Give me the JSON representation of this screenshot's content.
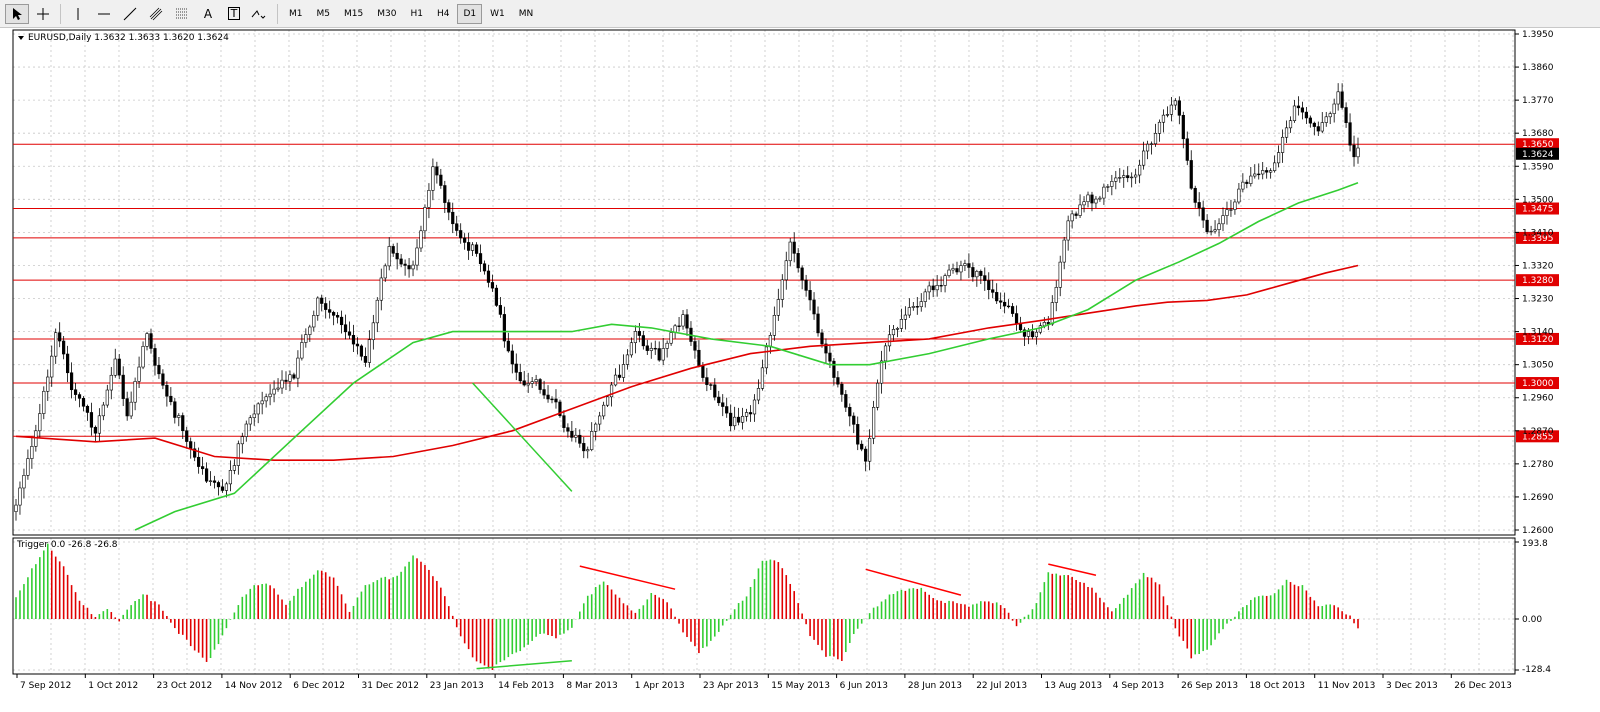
{
  "toolbar": {
    "tools": [
      {
        "name": "cursor-icon"
      },
      {
        "name": "crosshair-icon"
      },
      {
        "name": "vertical-line-icon"
      },
      {
        "name": "horizontal-line-icon"
      },
      {
        "name": "trendline-icon"
      },
      {
        "name": "channel-icon"
      },
      {
        "name": "fibonacci-icon"
      },
      {
        "name": "text-icon",
        "label": "A"
      },
      {
        "name": "text-label-icon",
        "label": "T"
      },
      {
        "name": "arrows-icon"
      }
    ],
    "timeframes": [
      "M1",
      "M5",
      "M15",
      "M30",
      "H1",
      "H4",
      "D1",
      "W1",
      "MN"
    ],
    "active_timeframe": "D1"
  },
  "chart_data": [
    {
      "type": "candlestick",
      "header": "EURUSD,Daily  1.3632 1.3633 1.3620 1.3624",
      "current_price": "1.3624",
      "ylim": [
        1.26,
        1.395
      ],
      "y_ticks": [
        "1.3950",
        "1.3860",
        "1.3770",
        "1.3680",
        "1.3590",
        "1.3500",
        "1.3410",
        "1.3320",
        "1.3230",
        "1.3140",
        "1.3050",
        "1.2960",
        "1.2870",
        "1.2780",
        "1.2690",
        "1.2600"
      ],
      "x_labels": [
        "7 Sep 2012",
        "1 Oct 2012",
        "23 Oct 2012",
        "14 Nov 2012",
        "6 Dec 2012",
        "31 Dec 2012",
        "23 Jan 2013",
        "14 Feb 2013",
        "8 Mar 2013",
        "1 Apr 2013",
        "23 Apr 2013",
        "15 May 2013",
        "6 Jun 2013",
        "28 Jun 2013",
        "22 Jul 2013",
        "13 Aug 2013",
        "4 Sep 2013",
        "26 Sep 2013",
        "18 Oct 2013",
        "11 Nov 2013",
        "3 Dec 2013",
        "26 Dec 2013"
      ],
      "horizontal_levels": [
        {
          "value": 1.365,
          "label": "1.3650"
        },
        {
          "value": 1.3475,
          "label": "1.3475"
        },
        {
          "value": 1.3395,
          "label": "1.3395"
        },
        {
          "value": 1.328,
          "label": "1.3280"
        },
        {
          "value": 1.312,
          "label": "1.3120"
        },
        {
          "value": 1.3,
          "label": "1.3000"
        },
        {
          "value": 1.2855,
          "label": "1.2855"
        }
      ],
      "close_path": [
        [
          0,
          1.265
        ],
        [
          4,
          1.283
        ],
        [
          10,
          1.314
        ],
        [
          14,
          1.298
        ],
        [
          20,
          1.288
        ],
        [
          25,
          1.308
        ],
        [
          28,
          1.289
        ],
        [
          33,
          1.313
        ],
        [
          38,
          1.298
        ],
        [
          45,
          1.278
        ],
        [
          52,
          1.272
        ],
        [
          58,
          1.287
        ],
        [
          64,
          1.299
        ],
        [
          70,
          1.303
        ],
        [
          76,
          1.321
        ],
        [
          82,
          1.318
        ],
        [
          88,
          1.304
        ],
        [
          94,
          1.338
        ],
        [
          100,
          1.33
        ],
        [
          105,
          1.357
        ],
        [
          110,
          1.345
        ],
        [
          115,
          1.336
        ],
        [
          120,
          1.324
        ],
        [
          126,
          1.303
        ],
        [
          132,
          1.298
        ],
        [
          138,
          1.29
        ],
        [
          144,
          1.282
        ],
        [
          150,
          1.298
        ],
        [
          156,
          1.315
        ],
        [
          162,
          1.306
        ],
        [
          168,
          1.32
        ],
        [
          174,
          1.3
        ],
        [
          180,
          1.288
        ],
        [
          185,
          1.293
        ],
        [
          190,
          1.312
        ],
        [
          195,
          1.338
        ],
        [
          200,
          1.323
        ],
        [
          205,
          1.304
        ],
        [
          210,
          1.289
        ],
        [
          214,
          1.28
        ],
        [
          218,
          1.308
        ],
        [
          224,
          1.318
        ],
        [
          230,
          1.327
        ],
        [
          236,
          1.33
        ],
        [
          242,
          1.331
        ],
        [
          248,
          1.322
        ],
        [
          254,
          1.312
        ],
        [
          260,
          1.318
        ],
        [
          265,
          1.343
        ],
        [
          270,
          1.349
        ],
        [
          276,
          1.356
        ],
        [
          282,
          1.355
        ],
        [
          287,
          1.37
        ],
        [
          292,
          1.378
        ],
        [
          296,
          1.352
        ],
        [
          300,
          1.34
        ],
        [
          305,
          1.348
        ],
        [
          310,
          1.354
        ],
        [
          316,
          1.358
        ],
        [
          322,
          1.376
        ],
        [
          328,
          1.368
        ],
        [
          333,
          1.38
        ],
        [
          337,
          1.3624
        ]
      ],
      "ma_green": [
        [
          30,
          1.26
        ],
        [
          40,
          1.265
        ],
        [
          55,
          1.27
        ],
        [
          70,
          1.285
        ],
        [
          85,
          1.3
        ],
        [
          100,
          1.311
        ],
        [
          110,
          1.314
        ],
        [
          125,
          1.314
        ],
        [
          140,
          1.314
        ],
        [
          150,
          1.316
        ],
        [
          160,
          1.315
        ],
        [
          175,
          1.312
        ],
        [
          190,
          1.31
        ],
        [
          205,
          1.305
        ],
        [
          215,
          1.305
        ],
        [
          230,
          1.308
        ],
        [
          245,
          1.312
        ],
        [
          258,
          1.315
        ],
        [
          270,
          1.32
        ],
        [
          282,
          1.328
        ],
        [
          293,
          1.333
        ],
        [
          303,
          1.338
        ],
        [
          313,
          1.344
        ],
        [
          323,
          1.349
        ],
        [
          333,
          1.3525
        ],
        [
          338,
          1.3545
        ]
      ],
      "ma_red": [
        [
          0,
          1.2855
        ],
        [
          20,
          1.284
        ],
        [
          35,
          1.285
        ],
        [
          50,
          1.28
        ],
        [
          65,
          1.279
        ],
        [
          80,
          1.279
        ],
        [
          95,
          1.28
        ],
        [
          110,
          1.283
        ],
        [
          125,
          1.287
        ],
        [
          140,
          1.293
        ],
        [
          155,
          1.299
        ],
        [
          170,
          1.304
        ],
        [
          185,
          1.308
        ],
        [
          200,
          1.31
        ],
        [
          215,
          1.311
        ],
        [
          230,
          1.312
        ],
        [
          245,
          1.315
        ],
        [
          258,
          1.317
        ],
        [
          270,
          1.319
        ],
        [
          282,
          1.321
        ],
        [
          290,
          1.322
        ],
        [
          300,
          1.3225
        ],
        [
          310,
          1.324
        ],
        [
          320,
          1.327
        ],
        [
          330,
          1.33
        ],
        [
          338,
          1.332
        ]
      ],
      "annotation_lines": [
        {
          "from": [
            115,
            1.3
          ],
          "to": [
            140,
            1.2705
          ],
          "color": "#32cd32"
        }
      ]
    },
    {
      "type": "histogram",
      "header": "Trigger 0.0 -26.8 -26.8",
      "ylim": [
        -128.4,
        193.8
      ],
      "y_ticks": [
        "193.8",
        "0.00",
        "-128.4"
      ],
      "profile": [
        [
          0,
          50
        ],
        [
          5,
          140
        ],
        [
          8,
          190
        ],
        [
          12,
          130
        ],
        [
          16,
          40
        ],
        [
          20,
          5
        ],
        [
          23,
          30
        ],
        [
          26,
          -5
        ],
        [
          29,
          30
        ],
        [
          32,
          60
        ],
        [
          36,
          40
        ],
        [
          40,
          -20
        ],
        [
          44,
          -70
        ],
        [
          48,
          -110
        ],
        [
          52,
          -40
        ],
        [
          56,
          40
        ],
        [
          60,
          80
        ],
        [
          64,
          90
        ],
        [
          68,
          40
        ],
        [
          72,
          80
        ],
        [
          76,
          120
        ],
        [
          80,
          110
        ],
        [
          84,
          20
        ],
        [
          88,
          80
        ],
        [
          92,
          100
        ],
        [
          96,
          110
        ],
        [
          100,
          160
        ],
        [
          104,
          120
        ],
        [
          108,
          60
        ],
        [
          112,
          -40
        ],
        [
          116,
          -110
        ],
        [
          120,
          -130
        ],
        [
          124,
          -90
        ],
        [
          128,
          -70
        ],
        [
          132,
          -40
        ],
        [
          136,
          -50
        ],
        [
          140,
          -20
        ],
        [
          144,
          60
        ],
        [
          148,
          90
        ],
        [
          152,
          50
        ],
        [
          156,
          20
        ],
        [
          160,
          60
        ],
        [
          164,
          40
        ],
        [
          168,
          -30
        ],
        [
          172,
          -80
        ],
        [
          176,
          -50
        ],
        [
          180,
          10
        ],
        [
          184,
          60
        ],
        [
          188,
          150
        ],
        [
          192,
          140
        ],
        [
          196,
          70
        ],
        [
          200,
          -40
        ],
        [
          204,
          -90
        ],
        [
          208,
          -110
        ],
        [
          212,
          -20
        ],
        [
          216,
          30
        ],
        [
          220,
          60
        ],
        [
          224,
          70
        ],
        [
          228,
          80
        ],
        [
          232,
          50
        ],
        [
          236,
          40
        ],
        [
          240,
          30
        ],
        [
          244,
          50
        ],
        [
          248,
          40
        ],
        [
          252,
          -20
        ],
        [
          256,
          20
        ],
        [
          260,
          120
        ],
        [
          264,
          110
        ],
        [
          268,
          90
        ],
        [
          272,
          70
        ],
        [
          276,
          20
        ],
        [
          280,
          60
        ],
        [
          284,
          110
        ],
        [
          288,
          90
        ],
        [
          292,
          -20
        ],
        [
          296,
          -100
        ],
        [
          300,
          -80
        ],
        [
          304,
          -20
        ],
        [
          308,
          20
        ],
        [
          312,
          50
        ],
        [
          316,
          60
        ],
        [
          320,
          100
        ],
        [
          324,
          80
        ],
        [
          328,
          30
        ],
        [
          332,
          40
        ],
        [
          336,
          10
        ],
        [
          338,
          -27
        ]
      ],
      "annotation_lines": [
        {
          "from": [
            142,
            133
          ],
          "to": [
            166,
            75
          ],
          "color": "#ff0000"
        },
        {
          "from": [
            214,
            125
          ],
          "to": [
            238,
            60
          ],
          "color": "#ff0000"
        },
        {
          "from": [
            260,
            138
          ],
          "to": [
            272,
            110
          ],
          "color": "#ff0000"
        },
        {
          "from": [
            116,
            -125
          ],
          "to": [
            140,
            -105
          ],
          "color": "#32cd32"
        }
      ]
    }
  ]
}
